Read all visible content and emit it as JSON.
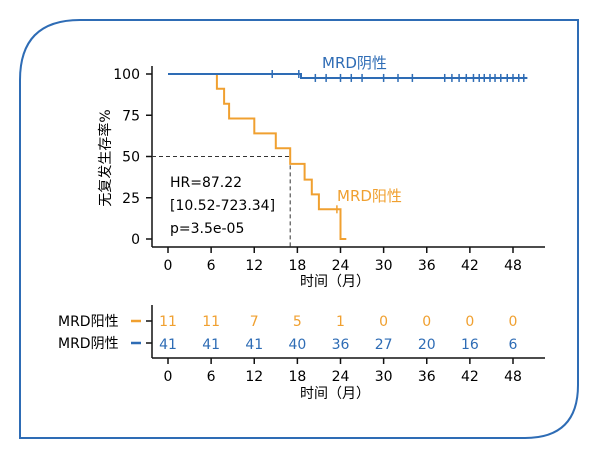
{
  "chart_data": [
    {
      "type": "line",
      "subtype": "kaplan-meier",
      "title": "",
      "xlabel": "时间（月）",
      "ylabel": "无复发生存率%",
      "xlim": [
        0,
        52
      ],
      "ylim": [
        0,
        100
      ],
      "xticks": [
        0,
        6,
        12,
        18,
        24,
        30,
        36,
        42,
        48
      ],
      "yticks": [
        0,
        25,
        50,
        75,
        100
      ],
      "grid": false,
      "legend": "inline labels on curves",
      "series": [
        {
          "name": "MRD阴性",
          "color": "#2e6cb5",
          "steps": [
            [
              0,
              100
            ],
            [
              18.5,
              100
            ],
            [
              18.5,
              97.6
            ],
            [
              50,
              97.6
            ]
          ],
          "censored": [
            [
              14.5,
              100
            ],
            [
              18.2,
              100
            ],
            [
              20.5,
              97.6
            ],
            [
              22,
              97.6
            ],
            [
              24,
              97.6
            ],
            [
              25.5,
              97.6
            ],
            [
              27,
              97.6
            ],
            [
              30,
              97.6
            ],
            [
              32,
              97.6
            ],
            [
              34,
              97.6
            ],
            [
              38.5,
              97.6
            ],
            [
              39.5,
              97.6
            ],
            [
              40.5,
              97.6
            ],
            [
              41.5,
              97.6
            ],
            [
              42.5,
              97.6
            ],
            [
              43.3,
              97.6
            ],
            [
              44,
              97.6
            ],
            [
              44.8,
              97.6
            ],
            [
              45.5,
              97.6
            ],
            [
              46.3,
              97.6
            ],
            [
              47.2,
              97.6
            ],
            [
              48,
              97.6
            ],
            [
              48.8,
              97.6
            ],
            [
              49.5,
              97.6
            ]
          ]
        },
        {
          "name": "MRD阳性",
          "color": "#f0a030",
          "steps": [
            [
              6.8,
              100
            ],
            [
              6.8,
              91
            ],
            [
              7.8,
              91
            ],
            [
              7.8,
              82
            ],
            [
              8.5,
              82
            ],
            [
              8.5,
              73
            ],
            [
              12,
              73
            ],
            [
              12,
              64
            ],
            [
              15,
              64
            ],
            [
              15,
              55
            ],
            [
              17,
              55
            ],
            [
              17,
              45.5
            ],
            [
              19,
              45.5
            ],
            [
              19,
              36
            ],
            [
              20,
              36
            ],
            [
              20,
              27
            ],
            [
              21,
              27
            ],
            [
              21,
              18
            ],
            [
              24,
              18
            ],
            [
              24,
              0
            ],
            [
              24.8,
              0
            ]
          ],
          "censored": [
            [
              23.5,
              18
            ]
          ]
        }
      ],
      "annotations": {
        "stats": [
          "HR=87.22",
          "[10.52-723.34]",
          "p=3.5e-05"
        ],
        "median_line": {
          "y": 50,
          "x": 17
        }
      }
    },
    {
      "type": "table",
      "title": "",
      "xlabel": "时间（月）",
      "x": [
        0,
        6,
        12,
        18,
        24,
        30,
        36,
        42,
        48
      ],
      "rows": [
        {
          "name": "MRD阳性",
          "color": "#f0a030",
          "values": [
            11,
            11,
            7,
            5,
            1,
            0,
            0,
            0,
            0
          ]
        },
        {
          "name": "MRD阴性",
          "color": "#2e6cb5",
          "values": [
            41,
            41,
            41,
            40,
            36,
            27,
            20,
            16,
            6
          ]
        }
      ]
    }
  ],
  "style": {
    "frame_color": "#2e6cb5",
    "axis_color": "#111111"
  }
}
